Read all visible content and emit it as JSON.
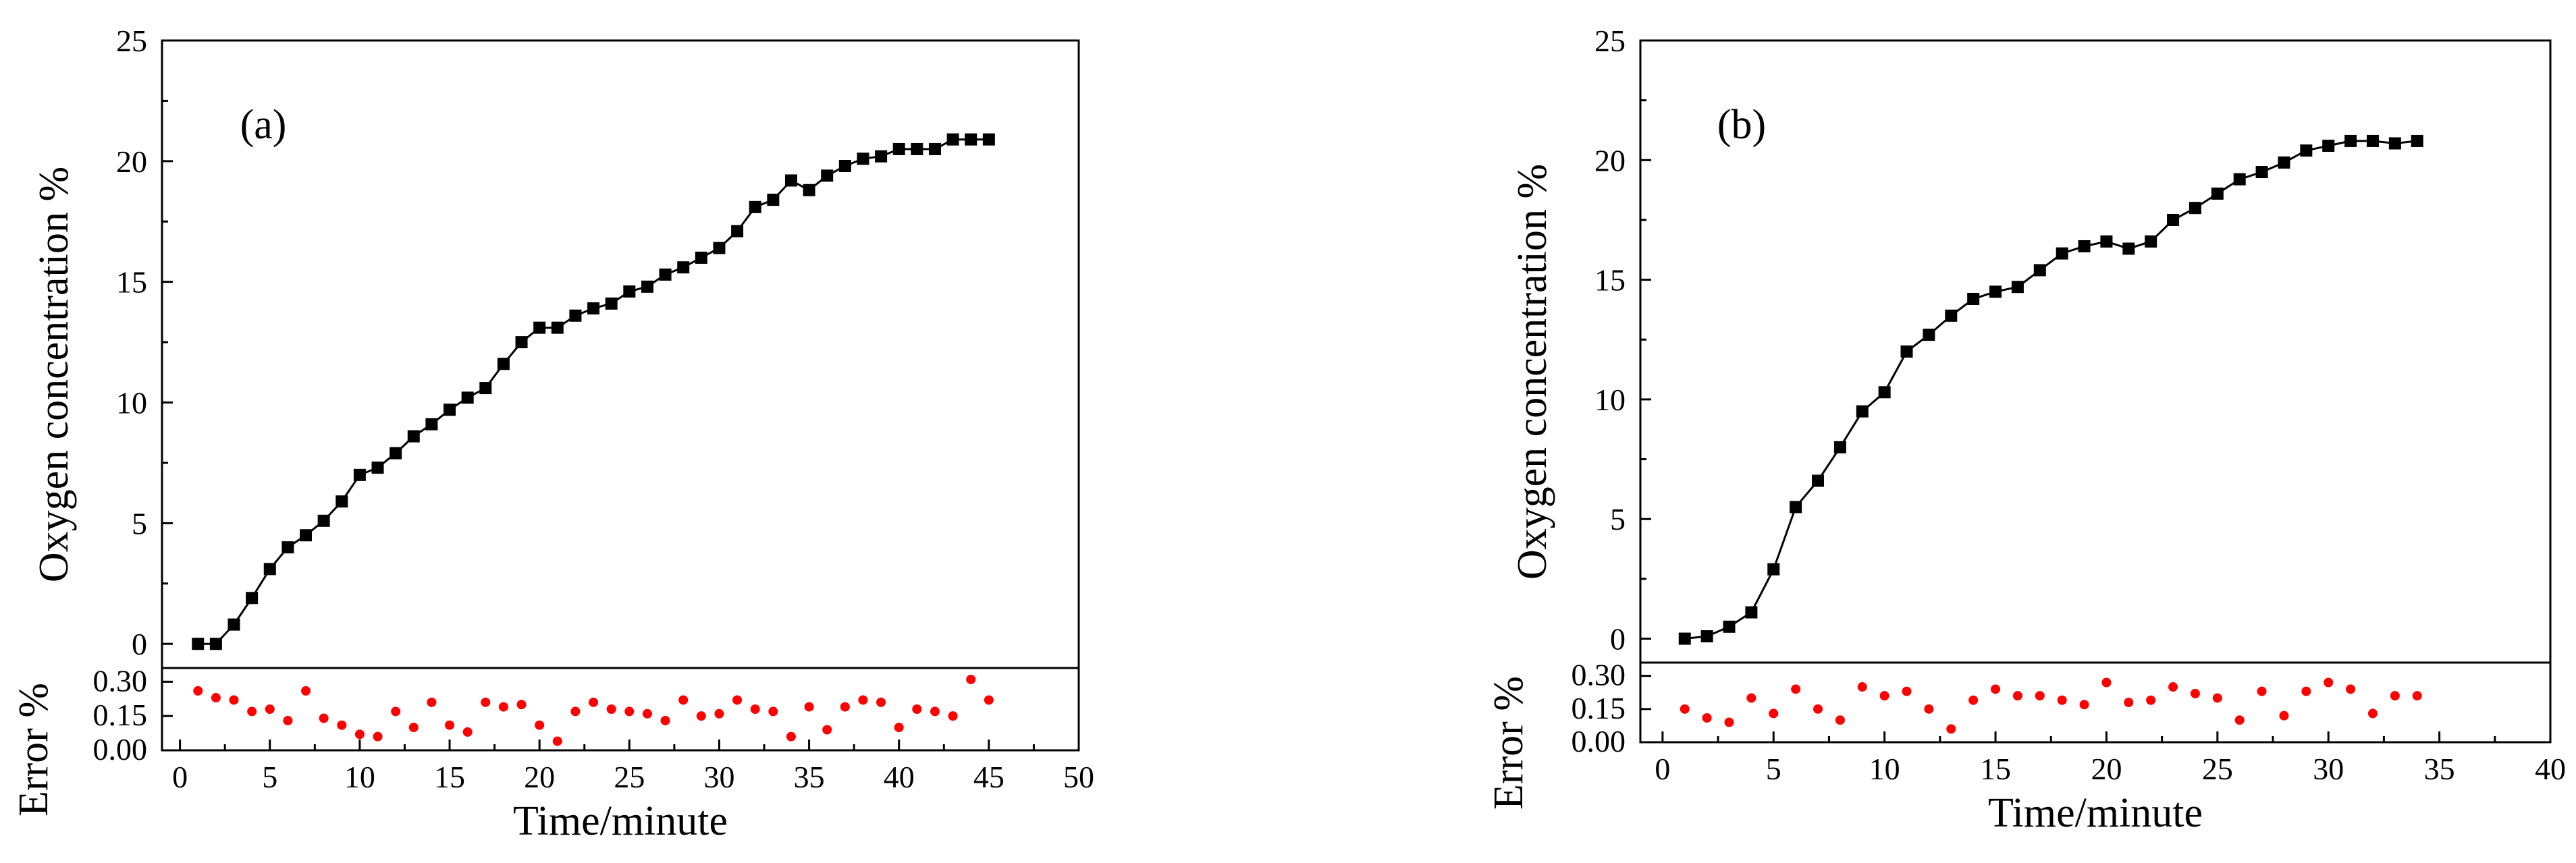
{
  "colors": {
    "main_line": "#000000",
    "main_marker": "#000000",
    "error_marker": "#ff0000",
    "axis": "#000000"
  },
  "chart_data": [
    {
      "type": "line",
      "panel_label": "(a)",
      "xlabel": "Time/minute",
      "ylabel": "Oxygen concentration %",
      "error_ylabel": "Error %",
      "xlim": [
        -1,
        50
      ],
      "ylim": [
        -1,
        25
      ],
      "error_ylim": [
        0,
        0.36
      ],
      "x_ticks": [
        0,
        5,
        10,
        15,
        20,
        25,
        30,
        35,
        40,
        45,
        50
      ],
      "x_tick_labels": [
        "0",
        "5",
        "10",
        "15",
        "20",
        "25",
        "30",
        "35",
        "40",
        "45",
        "50"
      ],
      "y_ticks": [
        0,
        5,
        10,
        15,
        20,
        25
      ],
      "y_tick_labels": [
        "0",
        "5",
        "10",
        "15",
        "20",
        "25"
      ],
      "error_ticks": [
        0,
        0.15,
        0.3
      ],
      "error_tick_labels": [
        "0.00",
        "0.15",
        "0.30"
      ],
      "series": [
        {
          "name": "Oxygen concentration",
          "x": [
            1,
            2,
            3,
            4,
            5,
            6,
            7,
            8,
            9,
            10,
            11,
            12,
            13,
            14,
            15,
            16,
            17,
            18,
            19,
            20,
            21,
            22,
            23,
            24,
            25,
            26,
            27,
            28,
            29,
            30,
            31,
            32,
            33,
            34,
            35,
            36,
            37,
            38,
            39,
            40,
            41,
            42,
            43,
            44,
            45
          ],
          "y": [
            0,
            0,
            0.8,
            1.9,
            3.1,
            4.0,
            4.5,
            5.1,
            5.9,
            7.0,
            7.3,
            7.9,
            8.6,
            9.1,
            9.7,
            10.2,
            10.6,
            11.6,
            12.5,
            13.1,
            13.1,
            13.6,
            13.9,
            14.1,
            14.6,
            14.8,
            15.3,
            15.6,
            16.0,
            16.4,
            17.1,
            18.1,
            18.4,
            19.2,
            18.8,
            19.4,
            19.8,
            20.1,
            20.2,
            20.5,
            20.5,
            20.5,
            20.9,
            20.9,
            20.9
          ]
        },
        {
          "name": "Error",
          "x": [
            1,
            2,
            3,
            4,
            5,
            6,
            7,
            8,
            9,
            10,
            11,
            12,
            13,
            14,
            15,
            16,
            17,
            18,
            19,
            20,
            21,
            22,
            23,
            24,
            25,
            26,
            27,
            28,
            29,
            30,
            31,
            32,
            33,
            34,
            35,
            36,
            37,
            38,
            39,
            40,
            41,
            42,
            43,
            44,
            45
          ],
          "y": [
            0.26,
            0.23,
            0.22,
            0.17,
            0.18,
            0.13,
            0.26,
            0.14,
            0.11,
            0.07,
            0.06,
            0.17,
            0.1,
            0.21,
            0.11,
            0.08,
            0.21,
            0.19,
            0.2,
            0.11,
            0.04,
            0.17,
            0.21,
            0.18,
            0.17,
            0.16,
            0.13,
            0.22,
            0.15,
            0.16,
            0.22,
            0.18,
            0.17,
            0.06,
            0.19,
            0.09,
            0.19,
            0.22,
            0.21,
            0.1,
            0.18,
            0.17,
            0.15,
            0.31,
            0.22
          ]
        }
      ]
    },
    {
      "type": "line",
      "panel_label": "(b)",
      "xlabel": "Time/minute",
      "ylabel": "Oxygen concentration %",
      "error_ylabel": "Error %",
      "xlim": [
        -1,
        40
      ],
      "ylim": [
        -1,
        25
      ],
      "error_ylim": [
        0,
        0.36
      ],
      "x_ticks": [
        0,
        5,
        10,
        15,
        20,
        25,
        30,
        35,
        40
      ],
      "x_tick_labels": [
        "0",
        "5",
        "10",
        "15",
        "20",
        "25",
        "30",
        "35",
        "40"
      ],
      "y_ticks": [
        0,
        5,
        10,
        15,
        20,
        25
      ],
      "y_tick_labels": [
        "0",
        "5",
        "10",
        "15",
        "20",
        "25"
      ],
      "error_ticks": [
        0,
        0.15,
        0.3
      ],
      "error_tick_labels": [
        "0.00",
        "0.15",
        "0.30"
      ],
      "series": [
        {
          "name": "Oxygen concentration",
          "x": [
            1,
            2,
            3,
            4,
            5,
            6,
            7,
            8,
            9,
            10,
            11,
            12,
            13,
            14,
            15,
            16,
            17,
            18,
            19,
            20,
            21,
            22,
            23,
            24,
            25,
            26,
            27,
            28,
            29,
            30,
            31,
            32,
            33,
            34
          ],
          "y": [
            0,
            0.1,
            0.5,
            1.1,
            2.9,
            5.5,
            6.6,
            8.0,
            9.5,
            10.3,
            12.0,
            12.7,
            13.5,
            14.2,
            14.5,
            14.7,
            15.4,
            16.1,
            16.4,
            16.6,
            16.3,
            16.6,
            17.5,
            18.0,
            18.6,
            19.2,
            19.5,
            19.9,
            20.4,
            20.6,
            20.8,
            20.8,
            20.7,
            20.8
          ]
        },
        {
          "name": "Error",
          "x": [
            1,
            2,
            3,
            4,
            5,
            6,
            7,
            8,
            9,
            10,
            11,
            12,
            13,
            14,
            15,
            16,
            17,
            18,
            19,
            20,
            21,
            22,
            23,
            24,
            25,
            26,
            27,
            28,
            29,
            30,
            31,
            32,
            33,
            34
          ],
          "y": [
            0.15,
            0.11,
            0.09,
            0.2,
            0.13,
            0.24,
            0.15,
            0.1,
            0.25,
            0.21,
            0.23,
            0.15,
            0.06,
            0.19,
            0.24,
            0.21,
            0.21,
            0.19,
            0.17,
            0.27,
            0.18,
            0.19,
            0.25,
            0.22,
            0.2,
            0.1,
            0.23,
            0.12,
            0.23,
            0.27,
            0.24,
            0.13,
            0.21,
            0.21
          ]
        }
      ]
    }
  ]
}
